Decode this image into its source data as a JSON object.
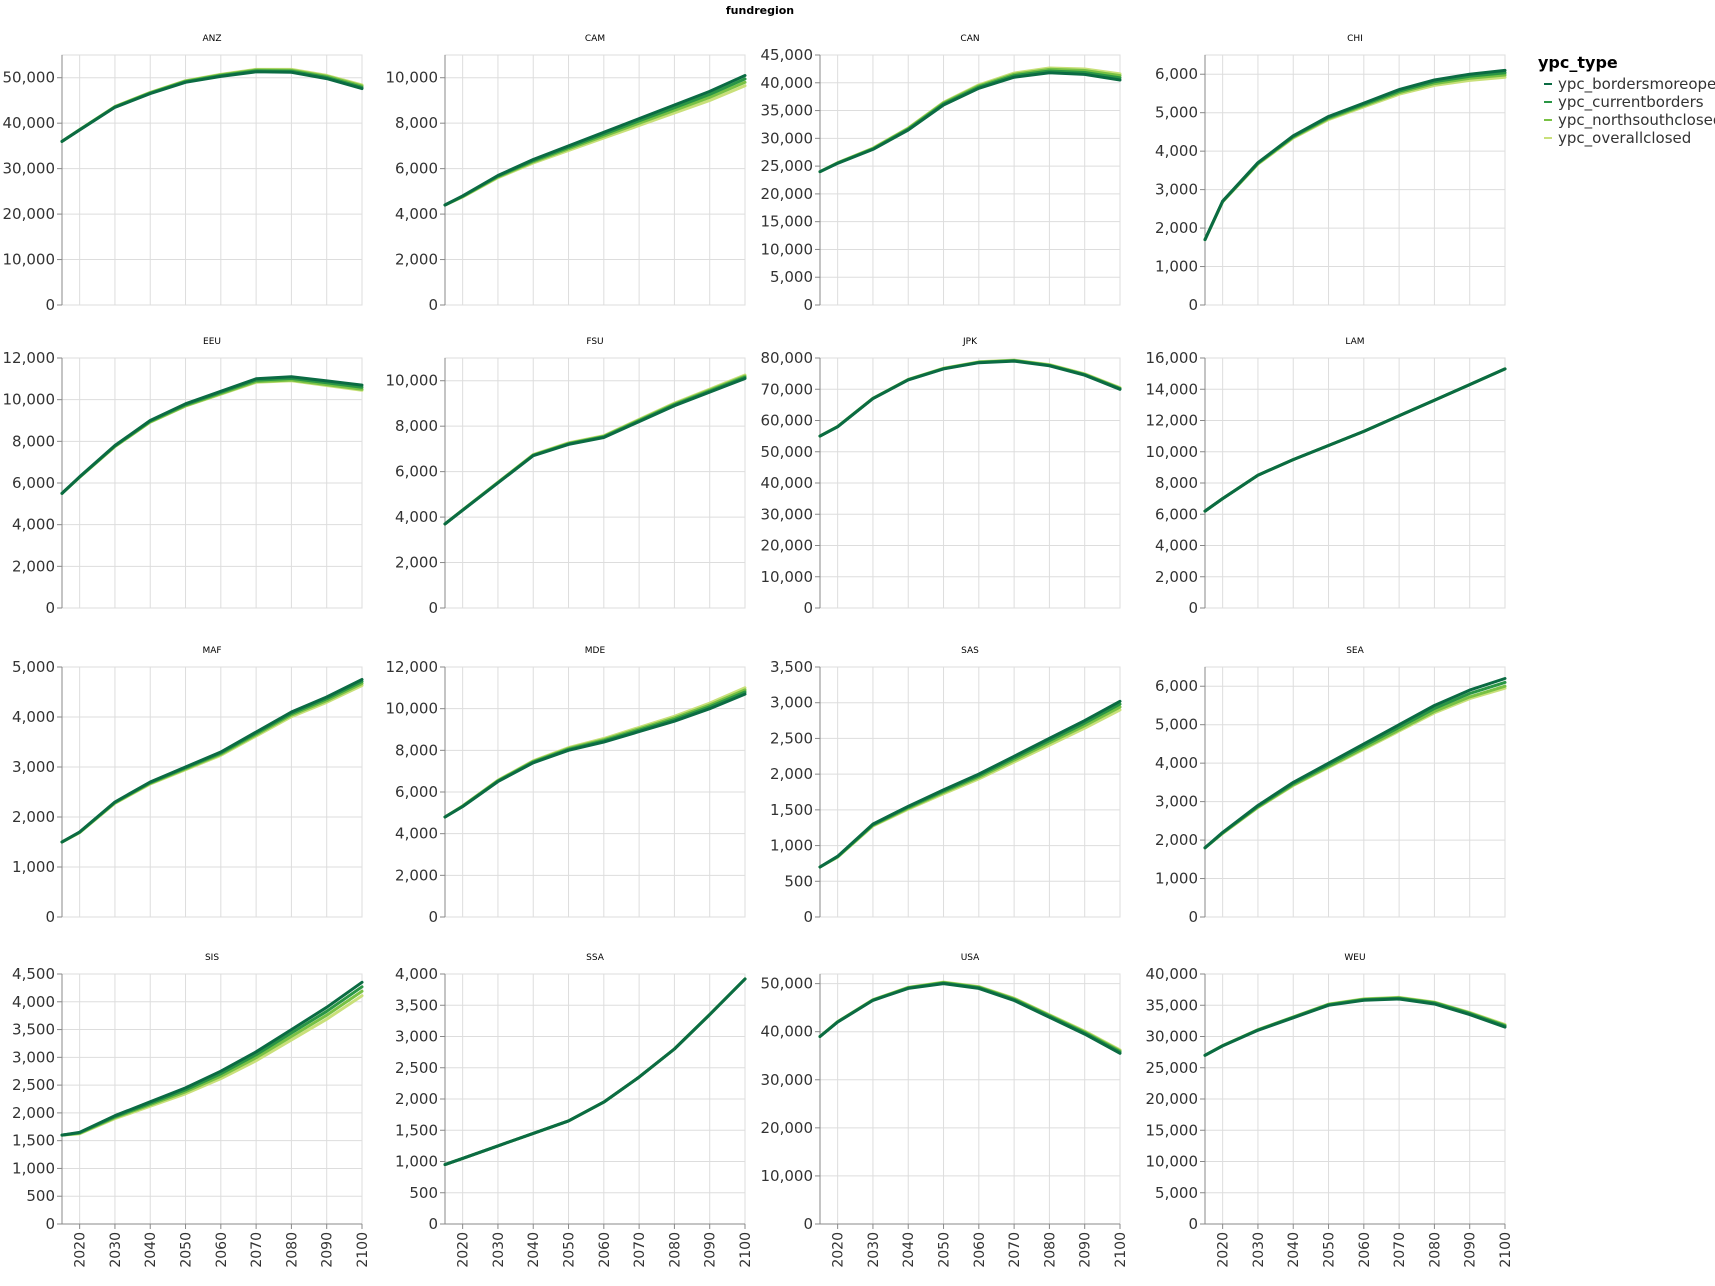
{
  "chart_data": {
    "type": "line",
    "facet_title": "fundregion",
    "legend_title": "ypc_type",
    "legend_position": "top-right",
    "grid": true,
    "x": [
      2015,
      2020,
      2030,
      2040,
      2050,
      2060,
      2070,
      2080,
      2090,
      2100
    ],
    "x_range": [
      2015,
      2100
    ],
    "x_ticks": [
      2020,
      2030,
      2040,
      2050,
      2060,
      2070,
      2080,
      2090,
      2100
    ],
    "series_colors": {
      "ypc_bordersmoreopen": "#0b6b43",
      "ypc_currentborders": "#2a9645",
      "ypc_northsouthclosed": "#78c144",
      "ypc_overallclosed": "#c9e07a"
    },
    "series_names": [
      "ypc_bordersmoreopen",
      "ypc_currentborders",
      "ypc_northsouthclosed",
      "ypc_overallclosed"
    ],
    "panels": [
      {
        "region": "ANZ",
        "ylim": [
          0,
          55000
        ],
        "yticks": [
          0,
          10000,
          20000,
          30000,
          40000,
          50000
        ],
        "base": [
          36000,
          38500,
          43500,
          46500,
          49000,
          50300,
          51300,
          51200,
          49800,
          47600
        ],
        "offsets": [
          0,
          300,
          600,
          800
        ]
      },
      {
        "region": "CAM",
        "ylim": [
          0,
          11000
        ],
        "yticks": [
          0,
          2000,
          4000,
          6000,
          8000,
          10000
        ],
        "base": [
          4400,
          4800,
          5700,
          6400,
          7000,
          7600,
          8200,
          8800,
          9400,
          10100
        ],
        "offsets": [
          0,
          -150,
          -300,
          -450
        ]
      },
      {
        "region": "CAN",
        "ylim": [
          0,
          45000
        ],
        "yticks": [
          0,
          5000,
          10000,
          15000,
          20000,
          25000,
          30000,
          35000,
          40000,
          45000
        ],
        "base": [
          24000,
          25500,
          28000,
          31500,
          36000,
          39000,
          41000,
          41800,
          41500,
          40500
        ],
        "offsets": [
          0,
          400,
          800,
          1100
        ]
      },
      {
        "region": "CHI",
        "ylim": [
          0,
          6500
        ],
        "yticks": [
          0,
          1000,
          2000,
          3000,
          4000,
          5000,
          6000
        ],
        "base": [
          1700,
          2700,
          3700,
          4400,
          4900,
          5250,
          5600,
          5850,
          6000,
          6100
        ],
        "offsets": [
          0,
          -60,
          -120,
          -180
        ]
      },
      {
        "region": "EEU",
        "ylim": [
          0,
          12000
        ],
        "yticks": [
          0,
          2000,
          4000,
          6000,
          8000,
          10000,
          12000
        ],
        "base": [
          5500,
          6300,
          7800,
          9000,
          9800,
          10400,
          11000,
          11100,
          10900,
          10700
        ],
        "offsets": [
          0,
          -100,
          -200,
          -250
        ]
      },
      {
        "region": "FSU",
        "ylim": [
          0,
          11000
        ],
        "yticks": [
          0,
          2000,
          4000,
          6000,
          8000,
          10000
        ],
        "base": [
          3700,
          4300,
          5500,
          6700,
          7200,
          7500,
          8200,
          8900,
          9500,
          10100
        ],
        "offsets": [
          0,
          50,
          100,
          150
        ]
      },
      {
        "region": "JPK",
        "ylim": [
          0,
          80000
        ],
        "yticks": [
          0,
          10000,
          20000,
          30000,
          40000,
          50000,
          60000,
          70000,
          80000
        ],
        "base": [
          55000,
          58000,
          67000,
          73000,
          76500,
          78500,
          79000,
          77500,
          74500,
          70000
        ],
        "offsets": [
          0,
          200,
          300,
          500
        ]
      },
      {
        "region": "LAM",
        "ylim": [
          0,
          16000
        ],
        "yticks": [
          0,
          2000,
          4000,
          6000,
          8000,
          10000,
          12000,
          14000,
          16000
        ],
        "base": [
          6200,
          7000,
          8500,
          9500,
          10400,
          11300,
          12300,
          13300,
          14300,
          15300
        ],
        "offsets": [
          0,
          0,
          0,
          0
        ]
      },
      {
        "region": "MAF",
        "ylim": [
          0,
          5000
        ],
        "yticks": [
          0,
          1000,
          2000,
          3000,
          4000,
          5000
        ],
        "base": [
          1500,
          1700,
          2300,
          2700,
          3000,
          3300,
          3700,
          4100,
          4400,
          4750
        ],
        "offsets": [
          0,
          -40,
          -80,
          -120
        ]
      },
      {
        "region": "MDE",
        "ylim": [
          0,
          12000
        ],
        "yticks": [
          0,
          2000,
          4000,
          6000,
          8000,
          10000,
          12000
        ],
        "base": [
          4800,
          5300,
          6500,
          7400,
          8000,
          8400,
          8900,
          9400,
          10000,
          10700
        ],
        "offsets": [
          0,
          100,
          200,
          300
        ]
      },
      {
        "region": "SAS",
        "ylim": [
          0,
          3500
        ],
        "yticks": [
          0,
          500,
          1000,
          1500,
          2000,
          2500,
          3000,
          3500
        ],
        "base": [
          700,
          850,
          1300,
          1550,
          1780,
          2000,
          2250,
          2500,
          2750,
          3020
        ],
        "offsets": [
          0,
          -40,
          -80,
          -120
        ]
      },
      {
        "region": "SEA",
        "ylim": [
          0,
          6500
        ],
        "yticks": [
          0,
          1000,
          2000,
          3000,
          4000,
          5000,
          6000
        ],
        "base": [
          1800,
          2200,
          2900,
          3500,
          4000,
          4500,
          5000,
          5500,
          5900,
          6200
        ],
        "offsets": [
          0,
          -100,
          -200,
          -250
        ]
      },
      {
        "region": "SIS",
        "ylim": [
          0,
          4500
        ],
        "yticks": [
          0,
          500,
          1000,
          1500,
          2000,
          2500,
          3000,
          3500,
          4000,
          4500
        ],
        "base": [
          1600,
          1650,
          1950,
          2200,
          2450,
          2750,
          3100,
          3500,
          3900,
          4350
        ],
        "offsets": [
          0,
          -80,
          -160,
          -240
        ]
      },
      {
        "region": "SSA",
        "ylim": [
          0,
          4000
        ],
        "yticks": [
          0,
          500,
          1000,
          1500,
          2000,
          2500,
          3000,
          3500,
          4000
        ],
        "base": [
          950,
          1050,
          1250,
          1450,
          1650,
          1950,
          2350,
          2800,
          3350,
          3920
        ],
        "offsets": [
          0,
          0,
          0,
          0
        ]
      },
      {
        "region": "USA",
        "ylim": [
          0,
          52000
        ],
        "yticks": [
          0,
          10000,
          20000,
          30000,
          40000,
          50000
        ],
        "base": [
          39000,
          42000,
          46500,
          49000,
          50000,
          49000,
          46500,
          43000,
          39500,
          35500
        ],
        "offsets": [
          0,
          300,
          500,
          700
        ]
      },
      {
        "region": "WEU",
        "ylim": [
          0,
          40000
        ],
        "yticks": [
          0,
          5000,
          10000,
          15000,
          20000,
          25000,
          30000,
          35000,
          40000
        ],
        "base": [
          27000,
          28500,
          31000,
          33000,
          35000,
          35800,
          36000,
          35200,
          33500,
          31500
        ],
        "offsets": [
          0,
          200,
          300,
          400
        ]
      }
    ]
  }
}
